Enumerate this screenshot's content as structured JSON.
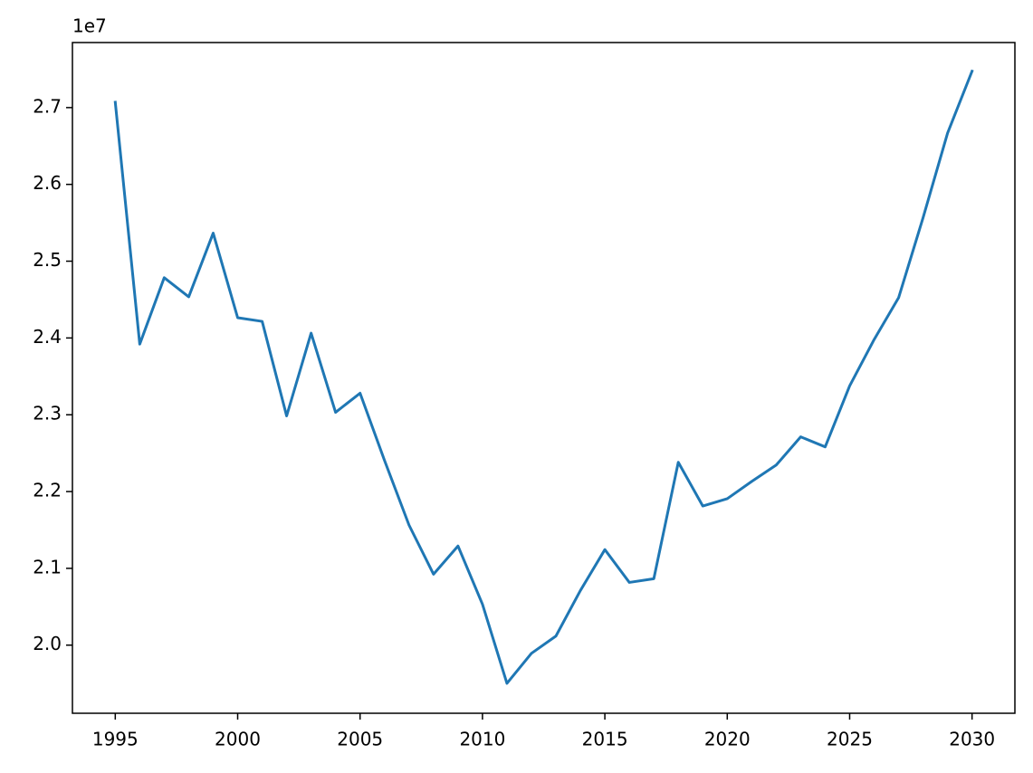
{
  "chart_data": {
    "type": "line",
    "x": [
      1995,
      1996,
      1997,
      1998,
      1999,
      2000,
      2001,
      2002,
      2003,
      2004,
      2005,
      2006,
      2007,
      2008,
      2009,
      2010,
      2011,
      2012,
      2013,
      2014,
      2015,
      2016,
      2017,
      2018,
      2019,
      2020,
      2021,
      2022,
      2023,
      2024,
      2025,
      2026,
      2027,
      2028,
      2029,
      2030
    ],
    "series": [
      {
        "color": "#1f77b4",
        "values": [
          27070000,
          23920000,
          24785000,
          24536000,
          25365000,
          24264000,
          24216000,
          22985000,
          24063000,
          23032000,
          23281000,
          22404000,
          21563000,
          20924000,
          21291000,
          20533000,
          19503000,
          19893000,
          20118000,
          20711000,
          21244000,
          20817000,
          20865000,
          22381000,
          21812000,
          21907000,
          22132000,
          22345000,
          22712000,
          22582000,
          23376000,
          23980000,
          24524000,
          25567000,
          26668000,
          27474000
        ]
      }
    ],
    "xlim": [
      1993.25,
      2031.75
    ],
    "xticks": [
      1995,
      2000,
      2005,
      2010,
      2015,
      2020,
      2025,
      2030
    ],
    "ylim": [
      19113000,
      27847000
    ],
    "yticks": [
      {
        "value": 20000000,
        "label": "2.0"
      },
      {
        "value": 21000000,
        "label": "2.1"
      },
      {
        "value": 22000000,
        "label": "2.2"
      },
      {
        "value": 23000000,
        "label": "2.3"
      },
      {
        "value": 24000000,
        "label": "2.4"
      },
      {
        "value": 25000000,
        "label": "2.5"
      },
      {
        "value": 26000000,
        "label": "2.6"
      },
      {
        "value": 27000000,
        "label": "2.7"
      }
    ],
    "y_offset_label": "1e7"
  }
}
